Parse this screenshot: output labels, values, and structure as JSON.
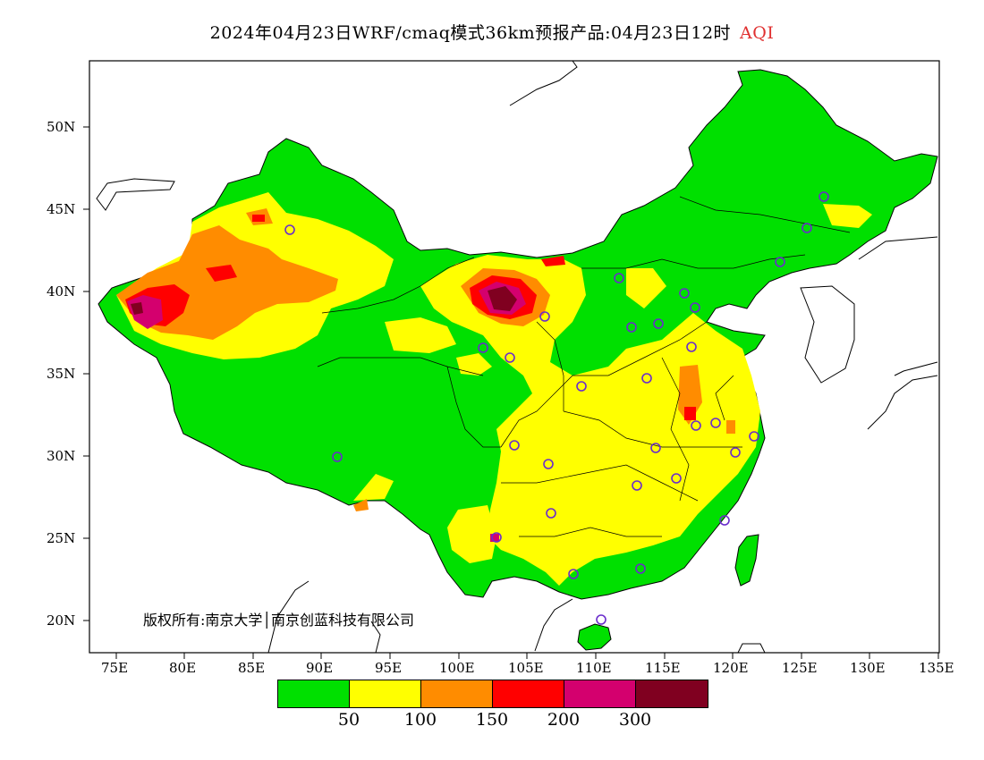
{
  "title": {
    "main": "2024年04月23日WRF/cmaq模式36km预报产品:04月23日12时",
    "variable": "AQI"
  },
  "axes": {
    "lon_ticks": [
      "75E",
      "80E",
      "85E",
      "90E",
      "95E",
      "100E",
      "105E",
      "110E",
      "115E",
      "120E",
      "125E",
      "130E",
      "135E"
    ],
    "lat_ticks": [
      "20N",
      "25N",
      "30N",
      "35N",
      "40N",
      "45N",
      "50N"
    ],
    "lon_range": [
      73,
      135
    ],
    "lat_range": [
      18,
      54
    ]
  },
  "copyright": "版权所有:南京大学│南京创蓝科技有限公司",
  "legend": {
    "colors": [
      "#00e000",
      "#ffff00",
      "#ff8c00",
      "#ff0000",
      "#d4006e",
      "#800020"
    ],
    "labels": [
      "50",
      "100",
      "150",
      "200",
      "300"
    ]
  },
  "palette": {
    "sea": "#ffffff",
    "border": "#000000",
    "station_ring": "#6a2ccc"
  }
}
